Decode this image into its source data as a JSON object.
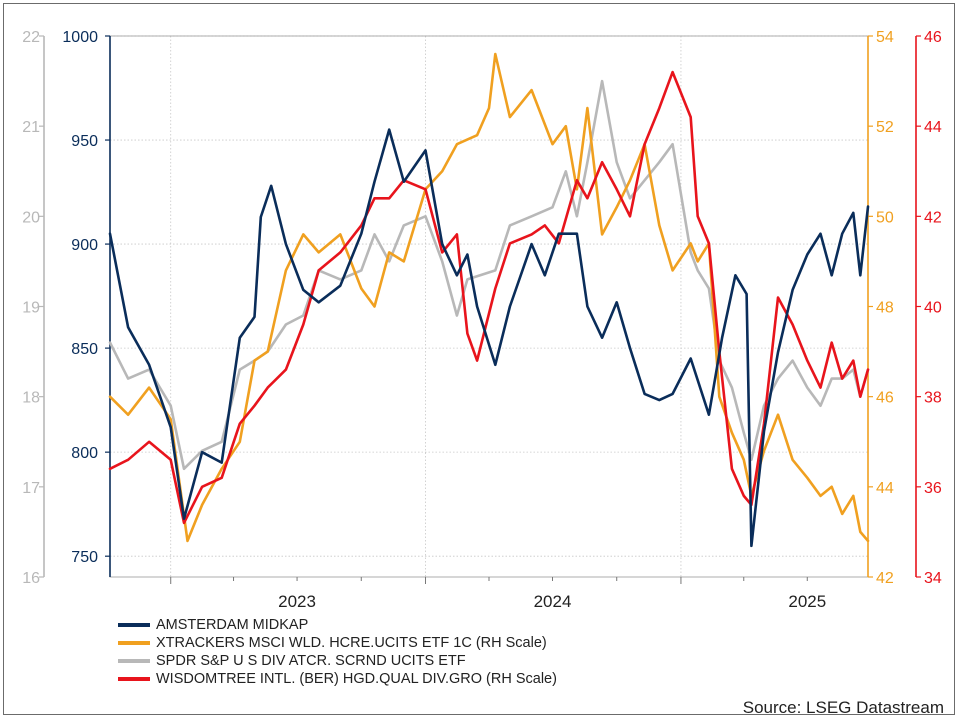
{
  "chart_data": {
    "type": "line",
    "source": "Source: LSEG Datastream",
    "x_ticks": [
      {
        "label": "2023",
        "date": "2023-07-01"
      },
      {
        "label": "2024",
        "date": "2024-07-01"
      },
      {
        "label": "2025",
        "date": "2025-07-01"
      }
    ],
    "x_range": [
      "2022-10-06",
      "2025-09-26"
    ],
    "axes": {
      "left_outer": {
        "min": 16,
        "max": 22,
        "ticks": [
          "16",
          "17",
          "18",
          "19",
          "20",
          "21",
          "22"
        ],
        "color": "#b8b8b8"
      },
      "left_inner": {
        "min": 740,
        "max": 1000,
        "ticks": [
          "750",
          "800",
          "850",
          "900",
          "950",
          "1000"
        ],
        "color": "#0a2d5a"
      },
      "right_inner": {
        "min": 42,
        "max": 54,
        "ticks": [
          "42",
          "44",
          "46",
          "48",
          "50",
          "52",
          "54"
        ],
        "color": "#f0a020"
      },
      "right_outer": {
        "min": 34,
        "max": 46,
        "ticks": [
          "34",
          "36",
          "38",
          "40",
          "42",
          "44",
          "46"
        ],
        "color": "#e8141c"
      }
    },
    "series": [
      {
        "name": "AMSTERDAM MIDKAP",
        "axis": "left_inner",
        "color": "#0a2d5a",
        "points": [
          [
            "2022-10-06",
            905
          ],
          [
            "2022-11-01",
            860
          ],
          [
            "2022-12-01",
            842
          ],
          [
            "2023-01-01",
            812
          ],
          [
            "2023-01-20",
            768
          ],
          [
            "2023-02-15",
            800
          ],
          [
            "2023-03-15",
            795
          ],
          [
            "2023-04-10",
            855
          ],
          [
            "2023-05-01",
            865
          ],
          [
            "2023-05-10",
            913
          ],
          [
            "2023-05-25",
            928
          ],
          [
            "2023-06-15",
            900
          ],
          [
            "2023-07-10",
            878
          ],
          [
            "2023-08-01",
            872
          ],
          [
            "2023-09-01",
            880
          ],
          [
            "2023-10-01",
            905
          ],
          [
            "2023-10-20",
            930
          ],
          [
            "2023-11-10",
            955
          ],
          [
            "2023-12-01",
            930
          ],
          [
            "2024-01-01",
            945
          ],
          [
            "2024-01-25",
            900
          ],
          [
            "2024-02-15",
            885
          ],
          [
            "2024-03-01",
            895
          ],
          [
            "2024-03-15",
            870
          ],
          [
            "2024-04-10",
            842
          ],
          [
            "2024-05-01",
            870
          ],
          [
            "2024-06-01",
            900
          ],
          [
            "2024-06-20",
            885
          ],
          [
            "2024-07-10",
            905
          ],
          [
            "2024-08-05",
            905
          ],
          [
            "2024-08-20",
            870
          ],
          [
            "2024-09-10",
            855
          ],
          [
            "2024-10-01",
            872
          ],
          [
            "2024-10-20",
            850
          ],
          [
            "2024-11-10",
            828
          ],
          [
            "2024-12-01",
            825
          ],
          [
            "2024-12-20",
            828
          ],
          [
            "2025-01-15",
            845
          ],
          [
            "2025-02-10",
            818
          ],
          [
            "2025-03-01",
            855
          ],
          [
            "2025-03-20",
            885
          ],
          [
            "2025-04-05",
            876
          ],
          [
            "2025-04-12",
            755
          ],
          [
            "2025-04-30",
            810
          ],
          [
            "2025-05-20",
            848
          ],
          [
            "2025-06-10",
            878
          ],
          [
            "2025-07-01",
            895
          ],
          [
            "2025-07-20",
            905
          ],
          [
            "2025-08-05",
            885
          ],
          [
            "2025-08-20",
            905
          ],
          [
            "2025-09-05",
            915
          ],
          [
            "2025-09-15",
            885
          ],
          [
            "2025-09-26",
            918
          ]
        ]
      },
      {
        "name": "XTRACKERS MSCI WLD. HCRE.UCITS ETF 1C (RH Scale)",
        "axis": "right_inner",
        "color": "#f0a020",
        "points": [
          [
            "2022-10-06",
            46.0
          ],
          [
            "2022-11-01",
            45.6
          ],
          [
            "2022-12-01",
            46.2
          ],
          [
            "2023-01-01",
            45.5
          ],
          [
            "2023-01-25",
            42.8
          ],
          [
            "2023-02-15",
            43.6
          ],
          [
            "2023-03-15",
            44.4
          ],
          [
            "2023-04-10",
            45.0
          ],
          [
            "2023-05-01",
            46.8
          ],
          [
            "2023-05-20",
            47.0
          ],
          [
            "2023-06-15",
            48.8
          ],
          [
            "2023-07-10",
            49.6
          ],
          [
            "2023-08-01",
            49.2
          ],
          [
            "2023-09-01",
            49.6
          ],
          [
            "2023-10-01",
            48.4
          ],
          [
            "2023-10-20",
            48.0
          ],
          [
            "2023-11-10",
            49.2
          ],
          [
            "2023-12-01",
            49.0
          ],
          [
            "2024-01-01",
            50.6
          ],
          [
            "2024-01-25",
            51.0
          ],
          [
            "2024-02-15",
            51.6
          ],
          [
            "2024-03-15",
            51.8
          ],
          [
            "2024-04-01",
            52.4
          ],
          [
            "2024-04-10",
            53.6
          ],
          [
            "2024-05-01",
            52.2
          ],
          [
            "2024-06-01",
            52.8
          ],
          [
            "2024-07-01",
            51.6
          ],
          [
            "2024-07-20",
            52.0
          ],
          [
            "2024-08-05",
            50.6
          ],
          [
            "2024-08-20",
            52.4
          ],
          [
            "2024-09-10",
            49.6
          ],
          [
            "2024-10-01",
            50.2
          ],
          [
            "2024-10-20",
            50.8
          ],
          [
            "2024-11-10",
            51.6
          ],
          [
            "2024-12-01",
            49.8
          ],
          [
            "2024-12-20",
            48.8
          ],
          [
            "2025-01-15",
            49.4
          ],
          [
            "2025-01-25",
            49.0
          ],
          [
            "2025-02-10",
            49.4
          ],
          [
            "2025-02-25",
            46.0
          ],
          [
            "2025-03-15",
            45.2
          ],
          [
            "2025-04-01",
            44.6
          ],
          [
            "2025-04-12",
            43.8
          ],
          [
            "2025-04-30",
            44.8
          ],
          [
            "2025-05-20",
            45.6
          ],
          [
            "2025-06-10",
            44.6
          ],
          [
            "2025-07-01",
            44.2
          ],
          [
            "2025-07-20",
            43.8
          ],
          [
            "2025-08-05",
            44.0
          ],
          [
            "2025-08-20",
            43.4
          ],
          [
            "2025-09-05",
            43.8
          ],
          [
            "2025-09-15",
            43.0
          ],
          [
            "2025-09-26",
            42.8
          ]
        ]
      },
      {
        "name": "SPDR S&P U S DIV ATCR. SCRND UCITS ETF",
        "axis": "left_outer",
        "color": "#b8b8b8",
        "points": [
          [
            "2022-10-06",
            18.6
          ],
          [
            "2022-11-01",
            18.2
          ],
          [
            "2022-12-01",
            18.3
          ],
          [
            "2023-01-01",
            17.9
          ],
          [
            "2023-01-20",
            17.2
          ],
          [
            "2023-02-15",
            17.4
          ],
          [
            "2023-03-15",
            17.5
          ],
          [
            "2023-04-10",
            18.3
          ],
          [
            "2023-05-01",
            18.4
          ],
          [
            "2023-05-20",
            18.5
          ],
          [
            "2023-06-15",
            18.8
          ],
          [
            "2023-07-10",
            18.9
          ],
          [
            "2023-08-01",
            19.4
          ],
          [
            "2023-09-01",
            19.3
          ],
          [
            "2023-10-01",
            19.4
          ],
          [
            "2023-10-20",
            19.8
          ],
          [
            "2023-11-10",
            19.5
          ],
          [
            "2023-12-01",
            19.9
          ],
          [
            "2024-01-01",
            20.0
          ],
          [
            "2024-01-25",
            19.5
          ],
          [
            "2024-02-15",
            18.9
          ],
          [
            "2024-03-01",
            19.3
          ],
          [
            "2024-04-10",
            19.4
          ],
          [
            "2024-05-01",
            19.9
          ],
          [
            "2024-06-01",
            20.0
          ],
          [
            "2024-07-01",
            20.1
          ],
          [
            "2024-07-20",
            20.5
          ],
          [
            "2024-08-05",
            20.0
          ],
          [
            "2024-08-20",
            20.6
          ],
          [
            "2024-09-10",
            21.5
          ],
          [
            "2024-10-01",
            20.6
          ],
          [
            "2024-10-20",
            20.2
          ],
          [
            "2024-11-10",
            20.4
          ],
          [
            "2024-12-01",
            20.6
          ],
          [
            "2024-12-20",
            20.8
          ],
          [
            "2025-01-15",
            19.6
          ],
          [
            "2025-01-25",
            19.4
          ],
          [
            "2025-02-10",
            19.2
          ],
          [
            "2025-02-25",
            18.4
          ],
          [
            "2025-03-15",
            18.1
          ],
          [
            "2025-04-01",
            17.6
          ],
          [
            "2025-04-12",
            17.3
          ],
          [
            "2025-04-30",
            17.9
          ],
          [
            "2025-05-20",
            18.2
          ],
          [
            "2025-06-10",
            18.4
          ],
          [
            "2025-07-01",
            18.1
          ],
          [
            "2025-07-20",
            17.9
          ],
          [
            "2025-08-05",
            18.2
          ],
          [
            "2025-08-20",
            18.2
          ],
          [
            "2025-09-05",
            18.3
          ],
          [
            "2025-09-15",
            18.0
          ],
          [
            "2025-09-26",
            18.3
          ]
        ]
      },
      {
        "name": "WISDOMTREE INTL. (BER) HGD.QUAL DIV.GRO (RH Scale)",
        "axis": "right_outer",
        "color": "#e8141c",
        "points": [
          [
            "2022-10-06",
            36.4
          ],
          [
            "2022-11-01",
            36.6
          ],
          [
            "2022-12-01",
            37.0
          ],
          [
            "2023-01-01",
            36.6
          ],
          [
            "2023-01-20",
            35.2
          ],
          [
            "2023-02-15",
            36.0
          ],
          [
            "2023-03-15",
            36.2
          ],
          [
            "2023-04-10",
            37.4
          ],
          [
            "2023-05-01",
            37.8
          ],
          [
            "2023-05-20",
            38.2
          ],
          [
            "2023-06-15",
            38.6
          ],
          [
            "2023-07-10",
            39.6
          ],
          [
            "2023-08-01",
            40.8
          ],
          [
            "2023-09-01",
            41.2
          ],
          [
            "2023-10-01",
            41.8
          ],
          [
            "2023-10-20",
            42.4
          ],
          [
            "2023-11-10",
            42.4
          ],
          [
            "2023-12-01",
            42.8
          ],
          [
            "2024-01-01",
            42.6
          ],
          [
            "2024-01-25",
            41.2
          ],
          [
            "2024-02-15",
            41.6
          ],
          [
            "2024-03-01",
            39.4
          ],
          [
            "2024-03-15",
            38.8
          ],
          [
            "2024-04-10",
            40.4
          ],
          [
            "2024-05-01",
            41.4
          ],
          [
            "2024-06-01",
            41.6
          ],
          [
            "2024-06-20",
            41.8
          ],
          [
            "2024-07-10",
            41.4
          ],
          [
            "2024-08-05",
            42.8
          ],
          [
            "2024-08-20",
            42.4
          ],
          [
            "2024-09-10",
            43.2
          ],
          [
            "2024-10-01",
            42.6
          ],
          [
            "2024-10-20",
            42.0
          ],
          [
            "2024-11-10",
            43.6
          ],
          [
            "2024-12-01",
            44.4
          ],
          [
            "2024-12-20",
            45.2
          ],
          [
            "2025-01-15",
            44.2
          ],
          [
            "2025-01-25",
            42.0
          ],
          [
            "2025-02-10",
            41.4
          ],
          [
            "2025-02-25",
            39.0
          ],
          [
            "2025-03-15",
            36.4
          ],
          [
            "2025-04-01",
            35.8
          ],
          [
            "2025-04-12",
            35.6
          ],
          [
            "2025-04-30",
            37.4
          ],
          [
            "2025-05-20",
            40.2
          ],
          [
            "2025-06-10",
            39.6
          ],
          [
            "2025-07-01",
            38.8
          ],
          [
            "2025-07-20",
            38.2
          ],
          [
            "2025-08-05",
            39.2
          ],
          [
            "2025-08-20",
            38.4
          ],
          [
            "2025-09-05",
            38.8
          ],
          [
            "2025-09-15",
            38.0
          ],
          [
            "2025-09-26",
            38.6
          ]
        ]
      }
    ]
  }
}
